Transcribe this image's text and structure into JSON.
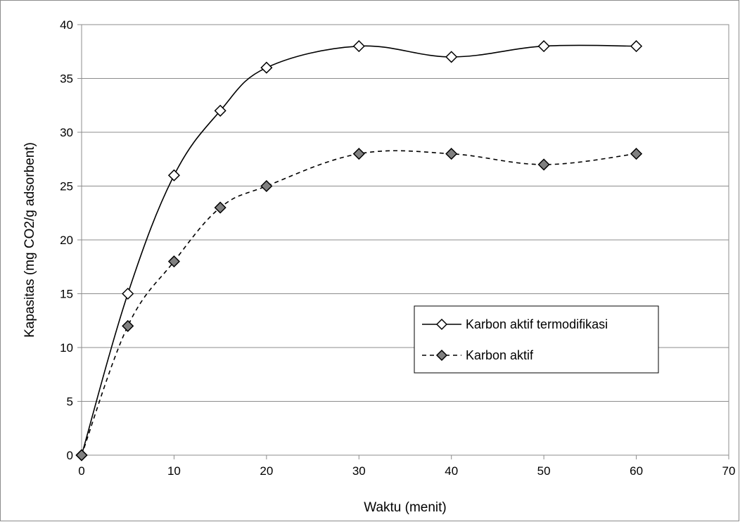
{
  "chart_data": {
    "type": "line",
    "xlabel": "Waktu (menit)",
    "ylabel": "Kapasitas (mg CO2/g adsorbent)",
    "xlim": [
      0,
      70
    ],
    "ylim": [
      0,
      40
    ],
    "x_ticks": [
      0,
      10,
      20,
      30,
      40,
      50,
      60,
      70
    ],
    "y_ticks": [
      0,
      5,
      10,
      15,
      20,
      25,
      30,
      35,
      40
    ],
    "grid": "horizontal",
    "legend_position": "right-middle",
    "series": [
      {
        "name": "Karbon aktif termodifikasi",
        "x": [
          0,
          5,
          10,
          15,
          20,
          30,
          40,
          50,
          60
        ],
        "values": [
          0,
          15,
          26,
          32,
          36,
          38,
          37,
          38,
          38
        ],
        "line_style": "solid",
        "marker": "diamond-open",
        "marker_fill": "#ffffff"
      },
      {
        "name": "Karbon aktif",
        "x": [
          0,
          5,
          10,
          15,
          20,
          30,
          40,
          50,
          60
        ],
        "values": [
          0,
          12,
          18,
          23,
          25,
          28,
          28,
          27,
          28
        ],
        "line_style": "dashed",
        "marker": "diamond-filled",
        "marker_fill": "#808080"
      }
    ]
  }
}
